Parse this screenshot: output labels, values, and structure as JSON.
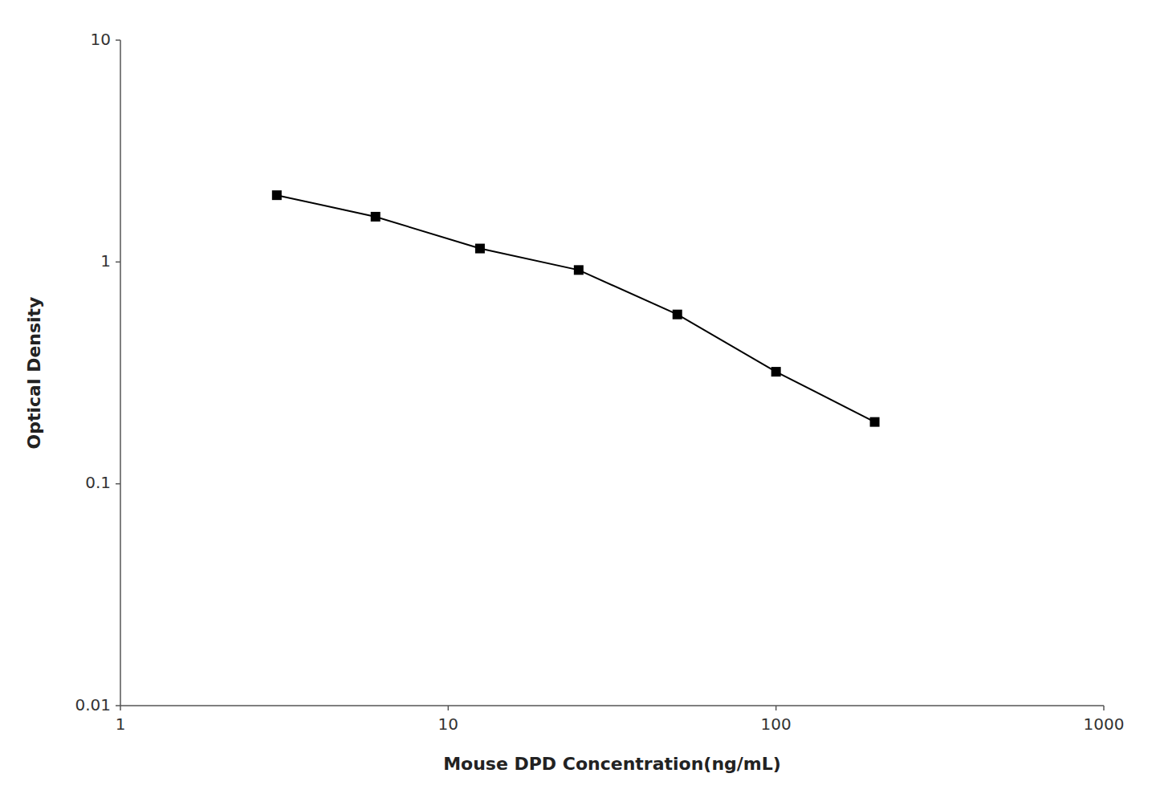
{
  "chart_data": {
    "type": "line",
    "x": [
      3.0,
      6.0,
      12.5,
      25.0,
      50.0,
      100.0,
      200.0
    ],
    "values": [
      2.0,
      1.6,
      1.15,
      0.92,
      0.58,
      0.32,
      0.19
    ],
    "xlabel": "Mouse DPD Concentration(ng/mL)",
    "ylabel": "Optical Density",
    "xlim": [
      1,
      1000
    ],
    "ylim": [
      0.01,
      10
    ],
    "xticks": [
      1,
      10,
      100,
      1000
    ],
    "yticks": [
      0.01,
      0.1,
      1,
      10
    ],
    "log": true,
    "grid": false,
    "color": "#000000",
    "marker": "square"
  }
}
